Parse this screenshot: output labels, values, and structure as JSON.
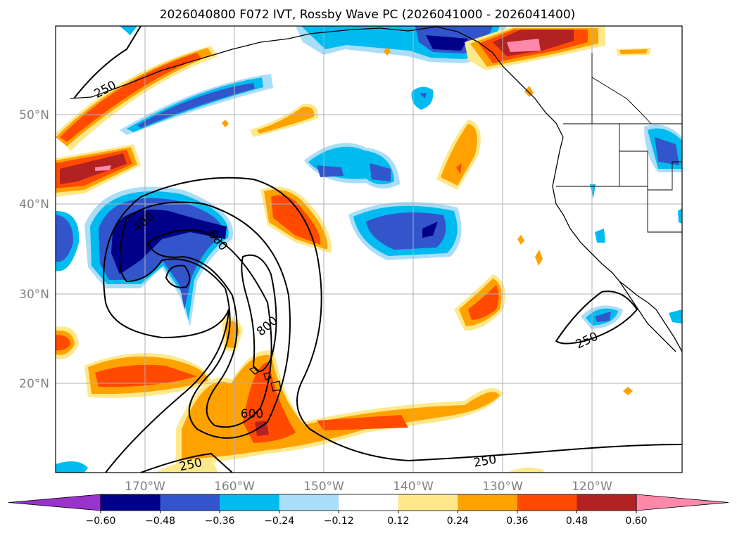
{
  "title": "2026040800 F072 IVT, Rossby Wave PC (2026041000 - 2026041400)",
  "map": {
    "lon_range": [
      -180,
      -110
    ],
    "lat_range": [
      10,
      60
    ],
    "lat_ticks": [
      "50°N",
      "40°N",
      "30°N",
      "20°N"
    ],
    "lon_ticks": [
      "170°W",
      "160°W",
      "150°W",
      "140°W",
      "130°W",
      "120°W"
    ],
    "gridlines": true
  },
  "contour_labels": [
    "250",
    "250",
    "400",
    "600",
    "800",
    "600",
    "250",
    "250"
  ],
  "colorbar": {
    "orientation": "horizontal",
    "extend": "both",
    "levels": [
      -0.6,
      -0.48,
      -0.36,
      -0.24,
      -0.12,
      0.12,
      0.24,
      0.36,
      0.48,
      0.6
    ],
    "tick_labels": [
      "−0.60",
      "−0.48",
      "−0.36",
      "−0.24",
      "−0.12",
      "0.12",
      "0.24",
      "0.36",
      "0.48",
      "0.60"
    ],
    "colors": [
      "#9933cc",
      "#000088",
      "#3355cc",
      "#00bbf0",
      "#aaddf7",
      "#ffffff",
      "#fde98b",
      "#ffa200",
      "#ff4a00",
      "#b22222",
      "#ff88aa"
    ]
  }
}
